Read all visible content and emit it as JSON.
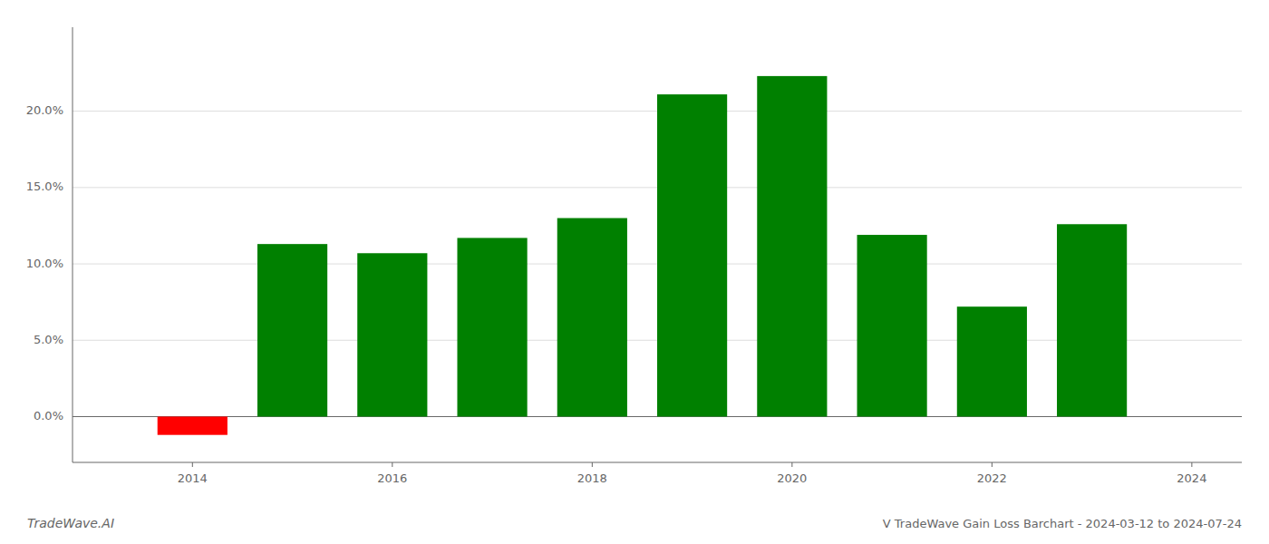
{
  "chart_data": {
    "type": "bar",
    "title": "V TradeWave Gain Loss Barchart - 2024-03-12 to 2024-07-24",
    "annotations": [
      "TradeWave.AI"
    ],
    "x": [
      2014,
      2015,
      2016,
      2017,
      2018,
      2019,
      2020,
      2021,
      2022,
      2023
    ],
    "values": [
      -0.012,
      0.113,
      0.107,
      0.117,
      0.13,
      0.211,
      0.223,
      0.119,
      0.072,
      0.126
    ],
    "colors": [
      "#ff0000",
      "#008000",
      "#008000",
      "#008000",
      "#008000",
      "#008000",
      "#008000",
      "#008000",
      "#008000",
      "#008000"
    ],
    "xlim": [
      2012.8,
      2024.5
    ],
    "xticks": [
      2014,
      2016,
      2018,
      2020,
      2022,
      2024
    ],
    "ylim": [
      -0.03,
      0.255
    ],
    "yticks": [
      {
        "value": 0.0,
        "label": "0.0%"
      },
      {
        "value": 0.05,
        "label": "5.0%"
      },
      {
        "value": 0.1,
        "label": "10.0%"
      },
      {
        "value": 0.15,
        "label": "15.0%"
      },
      {
        "value": 0.2,
        "label": "20.0%"
      }
    ],
    "grid": true
  }
}
